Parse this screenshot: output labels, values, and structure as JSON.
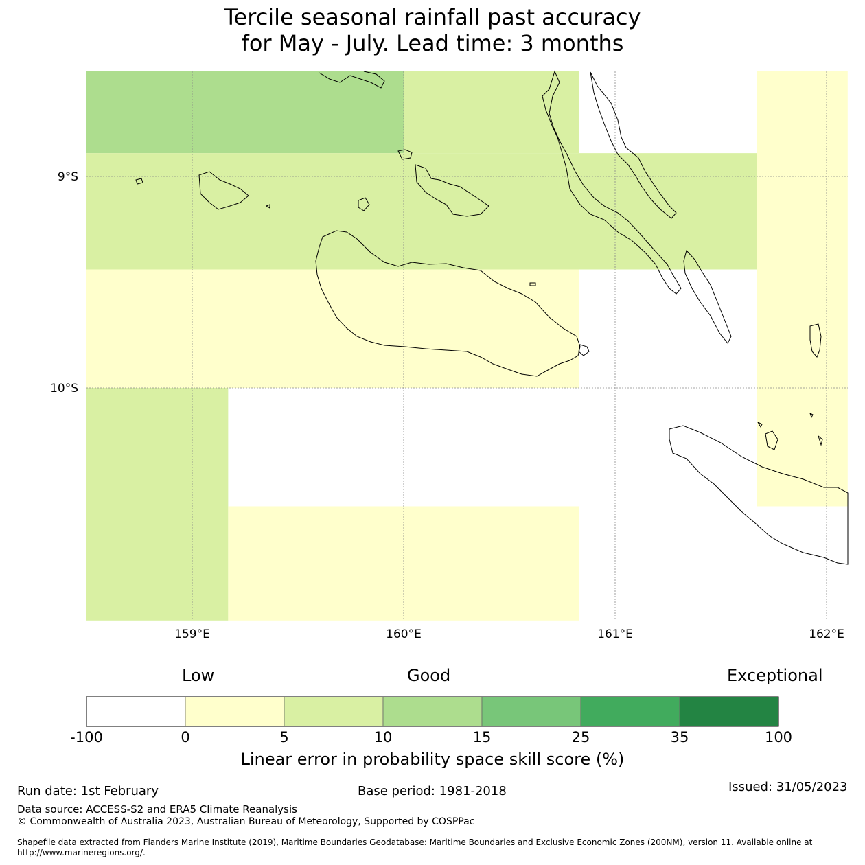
{
  "title_line1": "Tercile seasonal rainfall past accuracy",
  "title_line2": "for May - July. Lead time: 3 months",
  "chart_data": {
    "type": "heatmap",
    "title": "Tercile seasonal rainfall past accuracy for May - July. Lead time: 3 months",
    "xlim": [
      158.5,
      162.1
    ],
    "ylim": [
      -11.1,
      -8.5
    ],
    "x_ticks": [
      "159°E",
      "160°E",
      "161°E",
      "162°E"
    ],
    "x_tick_values": [
      159,
      160,
      161,
      162
    ],
    "y_ticks": [
      "9°S",
      "10°S"
    ],
    "y_tick_values": [
      -9,
      -10
    ],
    "cells": [
      {
        "lon": [
          158.5,
          160.0
        ],
        "lat": [
          -8.89,
          -8.5
        ],
        "band": 3
      },
      {
        "lon": [
          160.0,
          160.83
        ],
        "lat": [
          -8.89,
          -8.5
        ],
        "band": 2
      },
      {
        "lon": [
          158.5,
          161.67
        ],
        "lat": [
          -9.44,
          -8.89
        ],
        "band": 2
      },
      {
        "lon": [
          158.5,
          160.83
        ],
        "lat": [
          -10.0,
          -9.44
        ],
        "band": 1
      },
      {
        "lon": [
          158.5,
          159.17
        ],
        "lat": [
          -11.1,
          -10.0
        ],
        "band": 2
      },
      {
        "lon": [
          159.17,
          160.83
        ],
        "lat": [
          -11.1,
          -10.56
        ],
        "band": 1
      },
      {
        "lon": [
          161.67,
          162.1
        ],
        "lat": [
          -10.56,
          -8.5
        ],
        "band": 1
      }
    ]
  },
  "colorbar": {
    "word_low": "Low",
    "word_good": "Good",
    "word_exceptional": "Exceptional",
    "ticks": [
      "-100",
      "0",
      "5",
      "10",
      "15",
      "25",
      "35",
      "100"
    ],
    "colors": [
      "#ffffff",
      "#ffffcc",
      "#d9f0a3",
      "#addd8e",
      "#78c679",
      "#41ab5d",
      "#238443"
    ],
    "label": "Linear error in probability space skill score (%)"
  },
  "footer": {
    "run_date": "Run date: 1st February",
    "base_period": "Base period: 1981-2018",
    "issued": "Issued: 31/05/2023",
    "data_source": "Data source: ACCESS-S2 and ERA5 Climate Reanalysis",
    "copyright": "© Commonwealth of Australia 2023, Australian Bureau of Meteorology, Supported by COSPPac",
    "shapefile": "Shapefile data extracted from Flanders Marine Institute (2019), Maritime Boundaries Geodatabase: Maritime Boundaries and Exclusive Economic Zones (200NM), version 11. Available online at http://www.marineregions.org/."
  }
}
